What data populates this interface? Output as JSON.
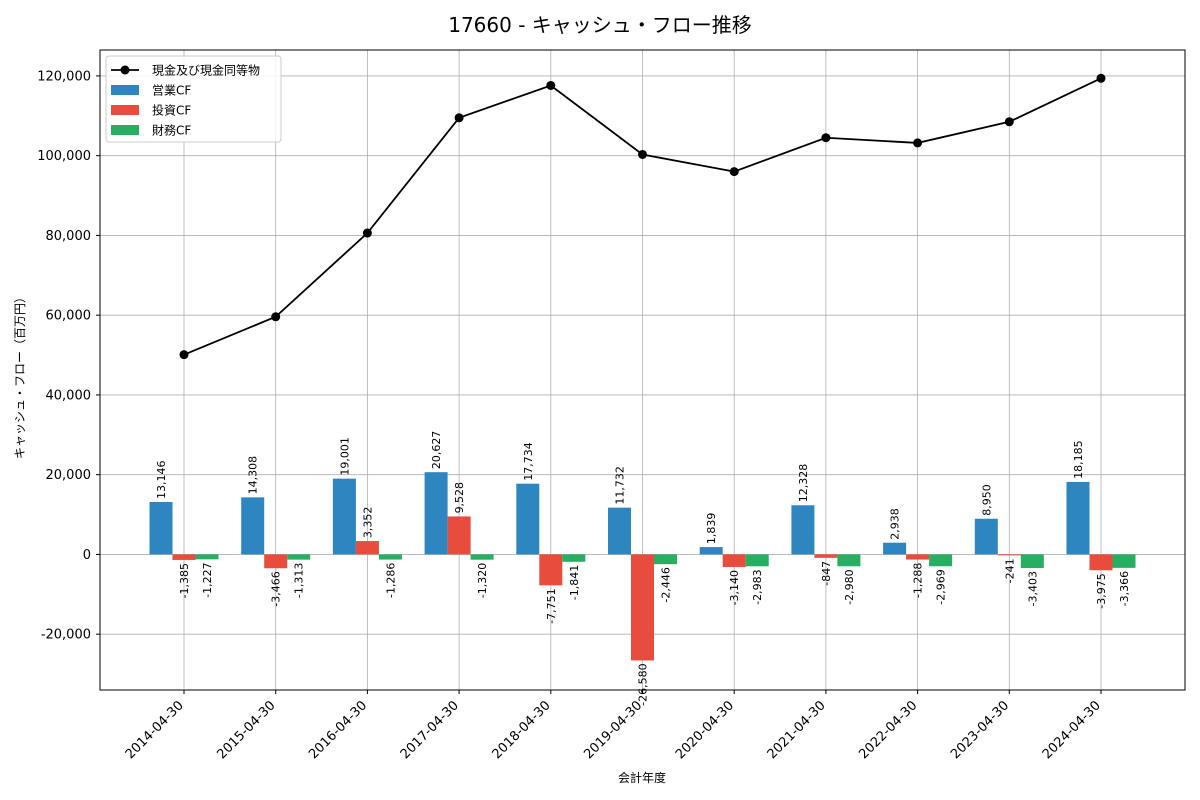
{
  "chart_data": {
    "type": "bar",
    "title": "17660 - キャッシュ・フロー推移",
    "xlabel": "会計年度",
    "ylabel": "キャッシュ・フロー（百万円）",
    "categories": [
      "2014-04-30",
      "2015-04-30",
      "2016-04-30",
      "2017-04-30",
      "2018-04-30",
      "2019-04-30",
      "2020-04-30",
      "2021-04-30",
      "2022-04-30",
      "2023-04-30",
      "2024-04-30"
    ],
    "ylim": [
      -34000,
      126500
    ],
    "yticks": [
      -20000,
      0,
      20000,
      40000,
      60000,
      80000,
      100000,
      120000
    ],
    "ytick_labels": [
      "-20,000",
      "0",
      "20,000",
      "40,000",
      "60,000",
      "80,000",
      "100,000",
      "120,000"
    ],
    "grid": true,
    "legend_position": "top-left",
    "series": [
      {
        "name": "営業CF",
        "type": "bar",
        "color": "#2e86c1",
        "values": [
          13146,
          14308,
          19001,
          20627,
          17734,
          11732,
          1839,
          12328,
          2938,
          8950,
          18185
        ],
        "labels": [
          "13,146",
          "14,308",
          "19,001",
          "20,627",
          "17,734",
          "11,732",
          "1,839",
          "12,328",
          "2,938",
          "8,950",
          "18,185"
        ]
      },
      {
        "name": "投資CF",
        "type": "bar",
        "color": "#e74c3c",
        "values": [
          -1385,
          -3466,
          3352,
          9528,
          -7751,
          -26580,
          -3140,
          -847,
          -1288,
          -241,
          -3975
        ],
        "labels": [
          "-1,385",
          "-3,466",
          "3,352",
          "9,528",
          "-7,751",
          "-26,580",
          "-3,140",
          "-847",
          "-1,288",
          "-241",
          "-3,975"
        ]
      },
      {
        "name": "財務CF",
        "type": "bar",
        "color": "#27ae60",
        "values": [
          -1227,
          -1313,
          -1286,
          -1320,
          -1841,
          -2446,
          -2983,
          -2980,
          -2969,
          -3403,
          -3366
        ],
        "labels": [
          "-1,227",
          "-1,313",
          "-1,286",
          "-1,320",
          "-1,841",
          "-2,446",
          "-2,983",
          "-2,980",
          "-2,969",
          "-3,403",
          "-3,366"
        ]
      },
      {
        "name": "現金及び現金同等物",
        "type": "line",
        "color": "#000000",
        "values": [
          50100,
          59600,
          80600,
          109500,
          117600,
          100300,
          96000,
          104500,
          103200,
          108500,
          119400
        ]
      }
    ]
  }
}
